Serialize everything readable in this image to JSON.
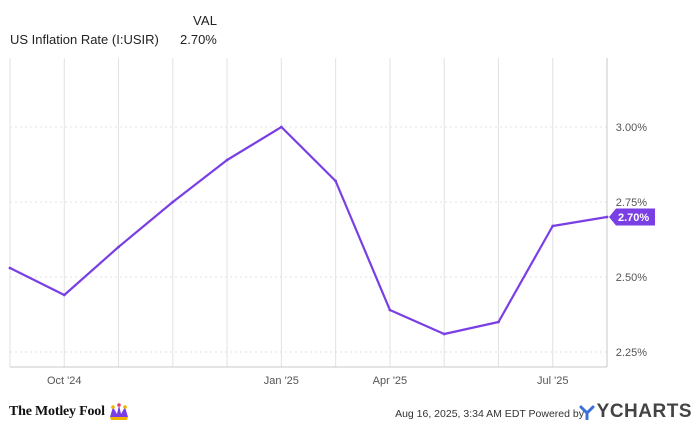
{
  "header": {
    "column_heading": "VAL",
    "series_name": "US Inflation Rate (I:USIR)",
    "series_value": "2.70%"
  },
  "chart_data": {
    "type": "line",
    "x": [
      "2024-08",
      "2024-09",
      "2024-10",
      "2024-11",
      "2024-12",
      "2025-01",
      "2025-02",
      "2025-03",
      "2025-04",
      "2025-05",
      "2025-06",
      "2025-07"
    ],
    "series": [
      {
        "name": "US Inflation Rate (I:USIR)",
        "values": [
          2.53,
          2.44,
          2.6,
          2.75,
          2.89,
          3.0,
          2.82,
          2.39,
          2.31,
          2.35,
          2.67,
          2.7
        ],
        "color": "#7a3fe4"
      }
    ],
    "x_ticks": [
      {
        "month": "2024-09",
        "label": "Oct '24"
      },
      {
        "month": "2025-01",
        "label": "Jan '25"
      },
      {
        "month": "2025-03",
        "label": "Apr '25"
      },
      {
        "month": "2025-06",
        "label": "Jul '25"
      }
    ],
    "y_ticks": [
      "2.25%",
      "2.50%",
      "2.75%",
      "3.00%"
    ],
    "y_tick_values": [
      2.25,
      2.5,
      2.75,
      3.0
    ],
    "ylim": [
      2.2,
      3.23
    ],
    "last_value_label": "2.70%",
    "grid": "vertical",
    "y_axis_side": "right"
  },
  "footer": {
    "brand": "The Motley Fool",
    "credit": "Aug 16, 2025, 3:34 AM EDT Powered by",
    "ycharts": "YCHARTS"
  },
  "colors": {
    "line": "#7a3fe4",
    "label_bg": "#7a3fe4",
    "grid": "#e2e2e2",
    "axis": "#c8c8c8"
  }
}
